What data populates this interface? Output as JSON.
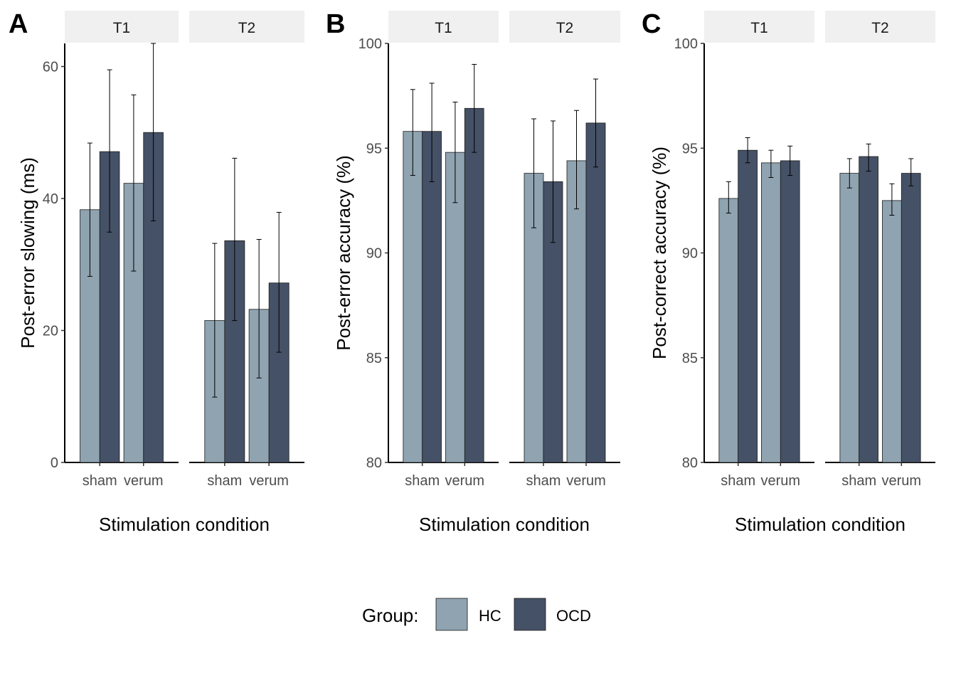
{
  "legend": {
    "title": "Group:",
    "items": [
      {
        "label": "HC",
        "color": "#8fa3b0"
      },
      {
        "label": "OCD",
        "color": "#455166"
      }
    ]
  },
  "chart_data": [
    {
      "type": "bar",
      "panel_label": "A",
      "ylabel": "Post-error slowing (ms)",
      "xlabel": "Stimulation condition",
      "ylim": [
        0,
        63.5
      ],
      "yticks": [
        "0",
        "20",
        "40",
        "60"
      ],
      "facets": [
        {
          "label": "T1",
          "categories": [
            "sham",
            "verum"
          ],
          "series": [
            {
              "name": "HC",
              "values": [
                38.3,
                42.3
              ],
              "err_low": [
                28.2,
                29.0
              ],
              "err_high": [
                48.4,
                55.7
              ]
            },
            {
              "name": "OCD",
              "values": [
                47.1,
                50.0
              ],
              "err_low": [
                34.9,
                36.6
              ],
              "err_high": [
                59.5,
                63.5
              ]
            }
          ]
        },
        {
          "label": "T2",
          "categories": [
            "sham",
            "verum"
          ],
          "series": [
            {
              "name": "HC",
              "values": [
                21.5,
                23.2
              ],
              "err_low": [
                9.9,
                12.8
              ],
              "err_high": [
                33.2,
                33.8
              ]
            },
            {
              "name": "OCD",
              "values": [
                33.6,
                27.2
              ],
              "err_low": [
                21.5,
                16.7
              ],
              "err_high": [
                46.1,
                37.9
              ]
            }
          ]
        }
      ]
    },
    {
      "type": "bar",
      "panel_label": "B",
      "ylabel": "Post-error accuracy (%)",
      "xlabel": "Stimulation condition",
      "ylim": [
        80,
        100
      ],
      "yticks": [
        "80",
        "85",
        "90",
        "95",
        "100"
      ],
      "facets": [
        {
          "label": "T1",
          "categories": [
            "sham",
            "verum"
          ],
          "series": [
            {
              "name": "HC",
              "values": [
                95.8,
                94.8
              ],
              "err_low": [
                93.7,
                92.4
              ],
              "err_high": [
                97.8,
                97.2
              ]
            },
            {
              "name": "OCD",
              "values": [
                95.8,
                96.9
              ],
              "err_low": [
                93.4,
                94.8
              ],
              "err_high": [
                98.1,
                99.0
              ]
            }
          ]
        },
        {
          "label": "T2",
          "categories": [
            "sham",
            "verum"
          ],
          "series": [
            {
              "name": "HC",
              "values": [
                93.8,
                94.4
              ],
              "err_low": [
                91.2,
                92.1
              ],
              "err_high": [
                96.4,
                96.8
              ]
            },
            {
              "name": "OCD",
              "values": [
                93.4,
                96.2
              ],
              "err_low": [
                90.5,
                94.1
              ],
              "err_high": [
                96.3,
                98.3
              ]
            }
          ]
        }
      ]
    },
    {
      "type": "bar",
      "panel_label": "C",
      "ylabel": "Post-correct accuracy (%)",
      "xlabel": "Stimulation condition",
      "ylim": [
        80,
        100
      ],
      "yticks": [
        "80",
        "85",
        "90",
        "95",
        "100"
      ],
      "facets": [
        {
          "label": "T1",
          "categories": [
            "sham",
            "verum"
          ],
          "series": [
            {
              "name": "HC",
              "values": [
                92.6,
                94.3
              ],
              "err_low": [
                91.9,
                93.6
              ],
              "err_high": [
                93.4,
                94.9
              ]
            },
            {
              "name": "OCD",
              "values": [
                94.9,
                94.4
              ],
              "err_low": [
                94.3,
                93.7
              ],
              "err_high": [
                95.5,
                95.1
              ]
            }
          ]
        },
        {
          "label": "T2",
          "categories": [
            "sham",
            "verum"
          ],
          "series": [
            {
              "name": "HC",
              "values": [
                93.8,
                92.5
              ],
              "err_low": [
                93.1,
                91.8
              ],
              "err_high": [
                94.5,
                93.3
              ]
            },
            {
              "name": "OCD",
              "values": [
                94.6,
                93.8
              ],
              "err_low": [
                93.9,
                93.2
              ],
              "err_high": [
                95.2,
                94.5
              ]
            }
          ]
        }
      ]
    }
  ]
}
